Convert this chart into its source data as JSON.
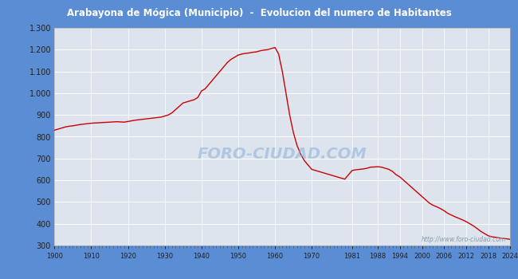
{
  "title": "Arabayona de Mógica (Municipio)  -  Evolucion del numero de Habitantes",
  "title_bg_color": "#4f86c6",
  "title_text_color": "#ffffff",
  "outer_bg_color": "#5b8dd4",
  "plot_bg_color": "#dde4ee",
  "line_color": "#cc0000",
  "grid_color": "#ffffff",
  "watermark": "http://www.foro-ciudad.com",
  "watermark_color": "#8899aa",
  "foro_watermark": "FORO-CIUDAD.COM",
  "foro_color": "#8ab0d8",
  "years": [
    1900,
    1901,
    1902,
    1903,
    1904,
    1905,
    1906,
    1907,
    1908,
    1909,
    1910,
    1911,
    1912,
    1913,
    1914,
    1915,
    1916,
    1917,
    1918,
    1919,
    1920,
    1921,
    1922,
    1923,
    1924,
    1925,
    1926,
    1927,
    1928,
    1929,
    1930,
    1931,
    1932,
    1933,
    1934,
    1935,
    1936,
    1937,
    1938,
    1939,
    1940,
    1941,
    1942,
    1943,
    1944,
    1945,
    1946,
    1947,
    1948,
    1949,
    1950,
    1951,
    1952,
    1953,
    1954,
    1955,
    1956,
    1957,
    1958,
    1959,
    1960,
    1961,
    1962,
    1963,
    1964,
    1965,
    1966,
    1967,
    1968,
    1969,
    1970,
    1971,
    1972,
    1973,
    1974,
    1975,
    1976,
    1977,
    1978,
    1979,
    1981,
    1982,
    1983,
    1984,
    1985,
    1986,
    1988,
    1989,
    1990,
    1991,
    1992,
    1993,
    1994,
    1995,
    1996,
    1997,
    1998,
    1999,
    2000,
    2001,
    2002,
    2003,
    2004,
    2005,
    2006,
    2007,
    2008,
    2009,
    2010,
    2011,
    2012,
    2013,
    2014,
    2015,
    2016,
    2017,
    2018,
    2019,
    2020,
    2021,
    2022,
    2023,
    2024
  ],
  "population": [
    830,
    835,
    840,
    845,
    848,
    850,
    853,
    856,
    858,
    860,
    862,
    863,
    864,
    865,
    866,
    867,
    868,
    869,
    868,
    867,
    870,
    873,
    876,
    878,
    880,
    882,
    884,
    886,
    888,
    890,
    895,
    900,
    910,
    925,
    940,
    955,
    960,
    965,
    970,
    980,
    1010,
    1020,
    1040,
    1060,
    1080,
    1100,
    1120,
    1140,
    1155,
    1165,
    1175,
    1180,
    1183,
    1185,
    1188,
    1190,
    1195,
    1198,
    1200,
    1205,
    1210,
    1180,
    1100,
    1000,
    900,
    820,
    760,
    720,
    690,
    670,
    650,
    645,
    640,
    635,
    630,
    625,
    620,
    615,
    610,
    605,
    645,
    648,
    650,
    652,
    655,
    660,
    662,
    660,
    655,
    650,
    640,
    625,
    615,
    600,
    585,
    570,
    555,
    540,
    525,
    510,
    495,
    485,
    478,
    470,
    460,
    448,
    440,
    432,
    425,
    418,
    410,
    400,
    390,
    378,
    365,
    355,
    345,
    340,
    338,
    335,
    333,
    331,
    328
  ],
  "xticks": [
    1900,
    1910,
    1920,
    1930,
    1940,
    1950,
    1960,
    1970,
    1981,
    1988,
    1994,
    2000,
    2006,
    2012,
    2018,
    2024
  ],
  "yticks": [
    300,
    400,
    500,
    600,
    700,
    800,
    900,
    1000,
    1100,
    1200,
    1300
  ],
  "ylim": [
    300,
    1300
  ],
  "xlim": [
    1900,
    2024
  ]
}
